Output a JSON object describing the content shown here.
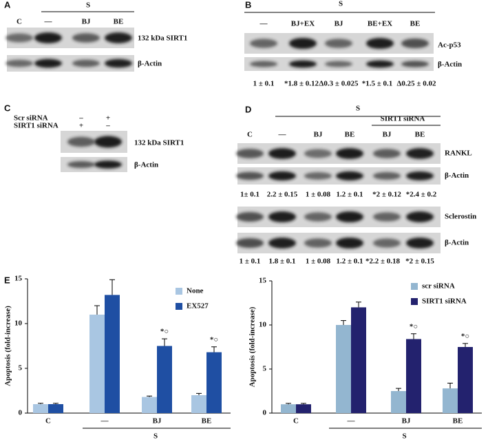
{
  "panels": {
    "A": {
      "label": "A",
      "group": "S",
      "lanes": [
        "C",
        "—",
        "BJ",
        "BE"
      ],
      "blots": [
        "132 kDa SIRT1",
        "β-Actin"
      ]
    },
    "B": {
      "label": "B",
      "group": "S",
      "lanes": [
        "—",
        "BJ+EX",
        "BJ",
        "BE+EX",
        "BE"
      ],
      "blots": [
        "Ac-p53",
        "β-Actin"
      ],
      "quantification": [
        "1 ± 0.1",
        "*1.8 ± 0.12",
        "Δ0.3 ± 0.025",
        "*1.5 ± 0.1",
        "Δ0.25 ± 0.02"
      ]
    },
    "C": {
      "label": "C",
      "rows": [
        {
          "name": "Scr siRNA",
          "signs": [
            "–",
            "+"
          ]
        },
        {
          "name": "SIRT1 siRNA",
          "signs": [
            "+",
            "–"
          ]
        }
      ],
      "blots": [
        "132 kDa SIRT1",
        "β-Actin"
      ]
    },
    "D": {
      "label": "D",
      "group": "S",
      "subgroup": "SIRT1 siRNA",
      "lanes": [
        "C",
        "—",
        "BJ",
        "BE",
        "BJ",
        "BE"
      ],
      "blots": [
        "RANKL",
        "β-Actin",
        "Sclerostin",
        "β-Actin"
      ],
      "quantification": [
        [
          "1± 0.1",
          "2.2 ± 0.15",
          "1 ± 0.08",
          "1.2 ± 0.1",
          "*2 ± 0.12",
          "*2.4 ± 0.2"
        ],
        [
          "1 ± 0.1",
          "1.8 ± 0.1",
          "1 ± 0.08",
          "1.2 ± 0.1",
          "*2.2 ± 0.18",
          "*2 ± 0.15"
        ]
      ]
    },
    "E": {
      "label": "E"
    }
  },
  "chart_data": [
    {
      "type": "bar",
      "ylabel": "Apoptosis (fold-increase)",
      "categories": [
        "C",
        "—",
        "BJ",
        "BE"
      ],
      "group_label": "S",
      "ylim": [
        0,
        15
      ],
      "yticks": [
        0,
        5,
        10,
        15
      ],
      "legend": "upper right",
      "series": [
        {
          "name": "None",
          "color": "#a9c6e2",
          "values": [
            1,
            11,
            1.8,
            2
          ],
          "errors": [
            0.1,
            1,
            0.1,
            0.2
          ],
          "annotations": [
            null,
            null,
            null,
            null
          ]
        },
        {
          "name": "EX527",
          "color": "#1f4fa3",
          "values": [
            1,
            13.2,
            7.5,
            6.8
          ],
          "errors": [
            0.1,
            1.7,
            0.8,
            0.6
          ],
          "annotations": [
            null,
            null,
            "*○",
            "*○"
          ]
        }
      ]
    },
    {
      "type": "bar",
      "ylabel": "Apoptosis (fold-increase)",
      "categories": [
        "C",
        "—",
        "BJ",
        "BE"
      ],
      "group_label": "S",
      "ylim": [
        0,
        15
      ],
      "yticks": [
        0,
        5,
        10,
        15
      ],
      "legend": "upper right",
      "series": [
        {
          "name": "scr siRNA",
          "color": "#93b6d0",
          "values": [
            1,
            10,
            2.5,
            2.8
          ],
          "errors": [
            0.1,
            0.5,
            0.3,
            0.6
          ],
          "annotations": [
            null,
            null,
            null,
            null
          ]
        },
        {
          "name": "SIRT1 siRNA",
          "color": "#23226e",
          "values": [
            1,
            12,
            8.4,
            7.5
          ],
          "errors": [
            0.1,
            0.6,
            0.6,
            0.4
          ],
          "annotations": [
            null,
            null,
            "*○",
            "*○"
          ]
        }
      ]
    }
  ]
}
